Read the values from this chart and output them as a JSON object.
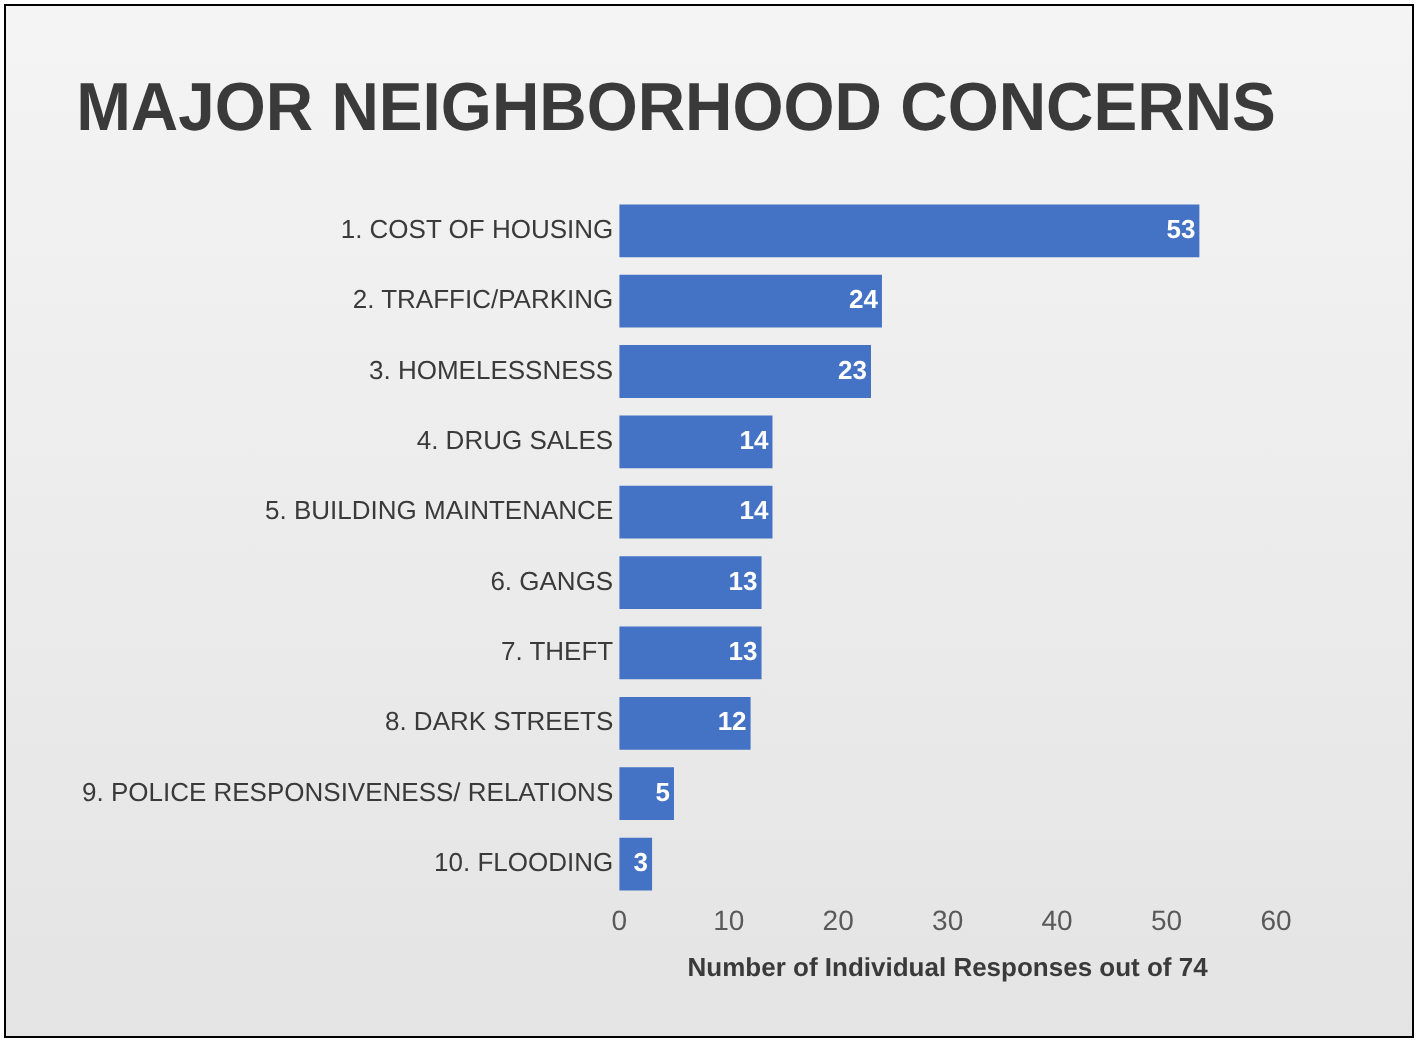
{
  "chart_data": {
    "type": "bar",
    "title": "MAJOR NEIGHBORHOOD CONCERNS",
    "xlabel": "Number of Individual Responses out of 74",
    "categories": [
      "1. COST OF HOUSING",
      "2. TRAFFIC/PARKING",
      "3. HOMELESSNESS",
      "4. DRUG SALES",
      "5. BUILDING MAINTENANCE",
      "6. GANGS",
      "7. THEFT",
      "8. DARK STREETS",
      "9. POLICE RESPONSIVENESS/ RELATIONS",
      "10. FLOODING"
    ],
    "values": [
      53,
      24,
      23,
      14,
      14,
      13,
      13,
      12,
      5,
      3
    ],
    "color": "#4472c4",
    "orientation": "horizontal",
    "xlim": [
      0,
      60
    ],
    "xticks": [
      0,
      10,
      20,
      30,
      40,
      50,
      60
    ],
    "grid": false,
    "data_labels": true
  }
}
